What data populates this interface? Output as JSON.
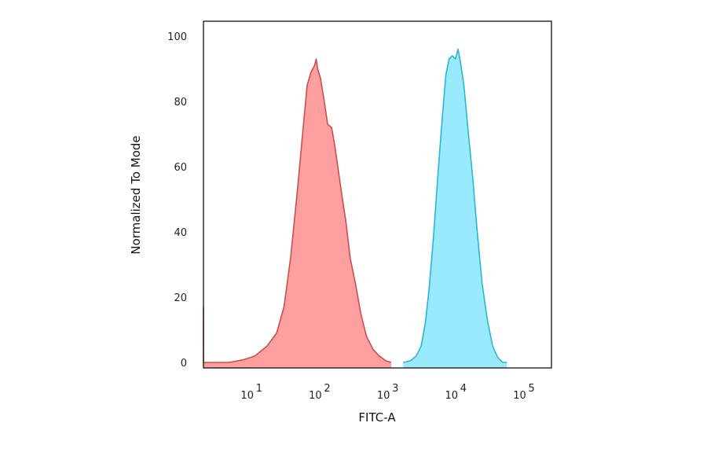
{
  "chart_data": {
    "type": "area",
    "title": "",
    "xlabel": "FITC-A",
    "ylabel": "Normalized To Mode",
    "x_scale": "log",
    "xlim": [
      1.5,
      200000
    ],
    "ylim": [
      0,
      100
    ],
    "x_ticks": [
      {
        "base": "10",
        "exp": "1",
        "value": 10
      },
      {
        "base": "10",
        "exp": "2",
        "value": 100
      },
      {
        "base": "10",
        "exp": "3",
        "value": 1000
      },
      {
        "base": "10",
        "exp": "4",
        "value": 10000
      },
      {
        "base": "10",
        "exp": "5",
        "value": 100000
      }
    ],
    "y_ticks": [
      "0",
      "20",
      "40",
      "60",
      "80",
      "100"
    ],
    "grid": false,
    "legend": "none",
    "series": [
      {
        "color_fill": "#ff9f9f",
        "color_line": "#c9504a",
        "points": [
          [
            1.6,
            17
          ],
          [
            1.75,
            3
          ],
          [
            1.85,
            0
          ],
          [
            5,
            0
          ],
          [
            8,
            0.8
          ],
          [
            12,
            2
          ],
          [
            18,
            5
          ],
          [
            25,
            9
          ],
          [
            32,
            17
          ],
          [
            40,
            32
          ],
          [
            50,
            52
          ],
          [
            60,
            70
          ],
          [
            70,
            85
          ],
          [
            80,
            89
          ],
          [
            90,
            91
          ],
          [
            95,
            93
          ],
          [
            100,
            90
          ],
          [
            110,
            87
          ],
          [
            125,
            80
          ],
          [
            140,
            73
          ],
          [
            160,
            72
          ],
          [
            180,
            66
          ],
          [
            220,
            53
          ],
          [
            260,
            43
          ],
          [
            300,
            32
          ],
          [
            360,
            24
          ],
          [
            430,
            15
          ],
          [
            520,
            8
          ],
          [
            650,
            4
          ],
          [
            800,
            2
          ],
          [
            1000,
            0.5
          ],
          [
            1200,
            0
          ]
        ]
      },
      {
        "color_fill": "#9aeaff",
        "color_line": "#2bb5d8",
        "points": [
          [
            1800,
            0
          ],
          [
            2300,
            0.5
          ],
          [
            2800,
            2
          ],
          [
            3300,
            5
          ],
          [
            3800,
            12
          ],
          [
            4300,
            22
          ],
          [
            5000,
            38
          ],
          [
            5800,
            57
          ],
          [
            6700,
            74
          ],
          [
            7600,
            88
          ],
          [
            8500,
            93
          ],
          [
            9500,
            94
          ],
          [
            10500,
            93
          ],
          [
            11500,
            96
          ],
          [
            12500,
            92
          ],
          [
            14000,
            85
          ],
          [
            16000,
            72
          ],
          [
            19000,
            56
          ],
          [
            22000,
            40
          ],
          [
            26000,
            24
          ],
          [
            31000,
            13
          ],
          [
            37000,
            5
          ],
          [
            44000,
            1.5
          ],
          [
            52000,
            0
          ],
          [
            60000,
            0
          ]
        ]
      }
    ]
  }
}
